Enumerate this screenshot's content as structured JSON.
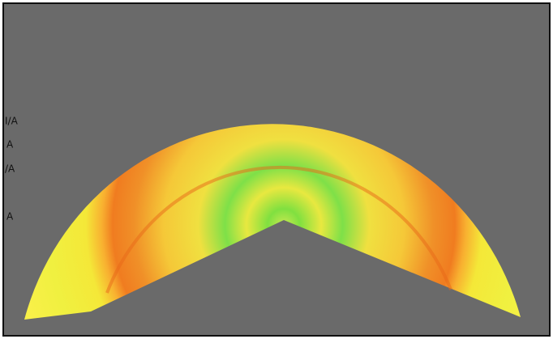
{
  "side_labels": [
    "I/A",
    "A",
    "/A",
    "A"
  ]
}
